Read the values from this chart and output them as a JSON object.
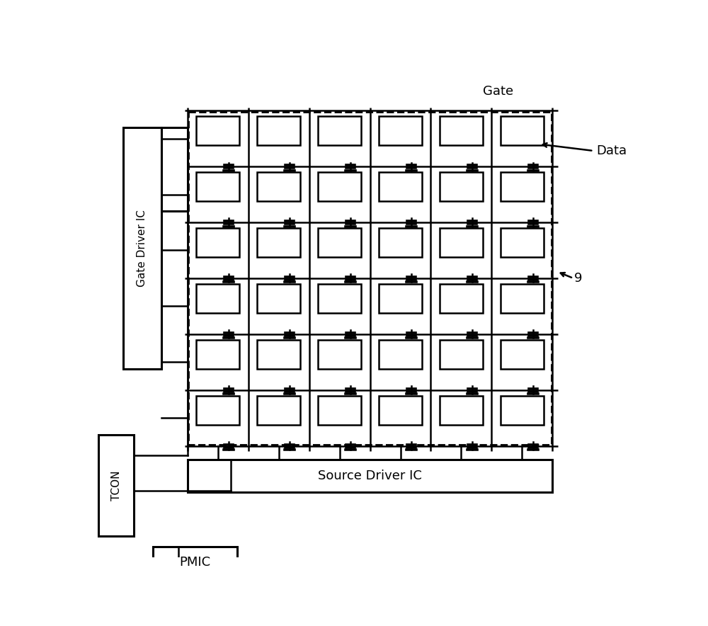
{
  "fig_width": 10.0,
  "fig_height": 8.84,
  "dpi": 100,
  "bg_color": "#ffffff",
  "grid_rows": 6,
  "grid_cols": 6,
  "gate_driver_label": "Gate Driver IC",
  "source_driver_label": "Source Driver IC",
  "tcon_label": "TCON",
  "pmic_label": "PMIC",
  "gate_label": "Gate",
  "data_label": "Data",
  "label_9": "9"
}
